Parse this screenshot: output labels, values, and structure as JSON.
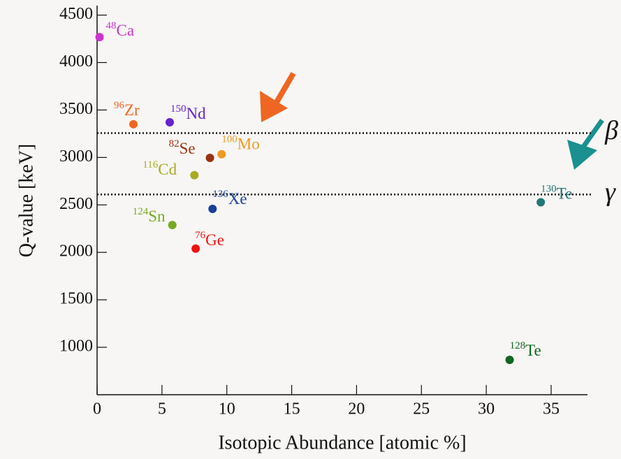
{
  "chart_data": {
    "type": "scatter",
    "x_label": "Isotopic Abundance [atomic %]",
    "y_label": "Q-value [keV]",
    "x": [
      0.19,
      2.8,
      5.6,
      8.7,
      9.6,
      7.5,
      8.9,
      5.8,
      7.6,
      34.2,
      31.8
    ],
    "values": [
      4268,
      3350,
      3371,
      2995,
      3034,
      2813,
      2458,
      2288,
      2039,
      2528,
      867
    ],
    "colors": [
      "#cc33cc",
      "#ee6622",
      "#6622cc",
      "#993311",
      "#ee9922",
      "#aaaa22",
      "#1a3f99",
      "#77aa22",
      "#ee1111",
      "#227777",
      "#116622"
    ],
    "point_labels": [
      {
        "mass": "48",
        "symbol": "Ca"
      },
      {
        "mass": "96",
        "symbol": "Zr"
      },
      {
        "mass": "150",
        "symbol": "Nd"
      },
      {
        "mass": "82",
        "symbol": "Se"
      },
      {
        "mass": "100",
        "symbol": "Mo"
      },
      {
        "mass": "116",
        "symbol": "Cd"
      },
      {
        "mass": "136",
        "symbol": "Xe"
      },
      {
        "mass": "124",
        "symbol": "Sn"
      },
      {
        "mass": "76",
        "symbol": "Ge"
      },
      {
        "mass": "130",
        "symbol": "Te"
      },
      {
        "mass": "128",
        "symbol": "Te"
      }
    ],
    "hlines": [
      {
        "value": 3257,
        "label": "β"
      },
      {
        "value": 2610,
        "label": "γ"
      }
    ],
    "xlim": [
      0,
      37.8
    ],
    "xticks": [
      0,
      5,
      10,
      15,
      20,
      25,
      30,
      35
    ],
    "ylim": [
      500,
      4600
    ],
    "yticks": [
      1000,
      1500,
      2000,
      2500,
      3000,
      3500,
      4000,
      4500
    ]
  }
}
